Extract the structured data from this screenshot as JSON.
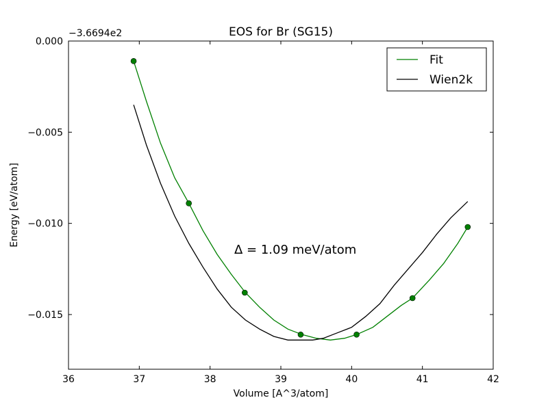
{
  "chart_data": {
    "type": "line",
    "title": "EOS for Br (SG15)",
    "xlabel": "Volume [A^3/atom]",
    "ylabel": "Energy [eV/atom]",
    "offset_label": "−3.6694e2",
    "annotation": "Δ = 1.09 meV/atom",
    "xlim": [
      36,
      42
    ],
    "ylim": [
      -0.018,
      0.0
    ],
    "x_ticks": [
      36,
      37,
      38,
      39,
      40,
      41,
      42
    ],
    "x_tick_labels": [
      "36",
      "37",
      "38",
      "39",
      "40",
      "41",
      "42"
    ],
    "y_ticks": [
      0.0,
      -0.005,
      -0.01,
      -0.015
    ],
    "y_tick_labels": [
      "0.000",
      "−0.005",
      "−0.010",
      "−0.015"
    ],
    "grid": false,
    "legend": {
      "position": "top-right",
      "entries": [
        "Fit",
        "Wien2k"
      ]
    },
    "series": [
      {
        "name": "Fit",
        "color": "#008000",
        "style": "line",
        "x": [
          36.92,
          37.1,
          37.3,
          37.5,
          37.7,
          37.9,
          38.1,
          38.3,
          38.5,
          38.7,
          38.9,
          39.1,
          39.3,
          39.5,
          39.7,
          39.9,
          40.07,
          40.3,
          40.5,
          40.7,
          40.86,
          41.1,
          41.3,
          41.5,
          41.64
        ],
        "y": [
          -0.0011,
          -0.0033,
          -0.0056,
          -0.0075,
          -0.0089,
          -0.0104,
          -0.0117,
          -0.0128,
          -0.0138,
          -0.0146,
          -0.0153,
          -0.0158,
          -0.0161,
          -0.0163,
          -0.0164,
          -0.0163,
          -0.0161,
          -0.0157,
          -0.0151,
          -0.0145,
          -0.0141,
          -0.0131,
          -0.0122,
          -0.0111,
          -0.0102
        ]
      },
      {
        "name": "",
        "color": "#008000",
        "style": "markers",
        "x": [
          36.92,
          37.7,
          38.49,
          39.28,
          40.07,
          40.86,
          41.64
        ],
        "y": [
          -0.0011,
          -0.0089,
          -0.0138,
          -0.0161,
          -0.0161,
          -0.0141,
          -0.0102
        ]
      },
      {
        "name": "Wien2k",
        "color": "#000000",
        "style": "line",
        "x": [
          36.92,
          37.1,
          37.3,
          37.5,
          37.7,
          37.9,
          38.1,
          38.3,
          38.5,
          38.7,
          38.9,
          39.1,
          39.3,
          39.45,
          39.6,
          39.8,
          40.0,
          40.2,
          40.4,
          40.6,
          40.8,
          41.0,
          41.2,
          41.4,
          41.64
        ],
        "y": [
          -0.0035,
          -0.0057,
          -0.0078,
          -0.0096,
          -0.0111,
          -0.0124,
          -0.0136,
          -0.0146,
          -0.0153,
          -0.0158,
          -0.0162,
          -0.0164,
          -0.0164,
          -0.0164,
          -0.0163,
          -0.016,
          -0.0157,
          -0.0151,
          -0.0144,
          -0.0134,
          -0.0125,
          -0.0116,
          -0.0106,
          -0.0097,
          -0.0088
        ]
      }
    ]
  }
}
